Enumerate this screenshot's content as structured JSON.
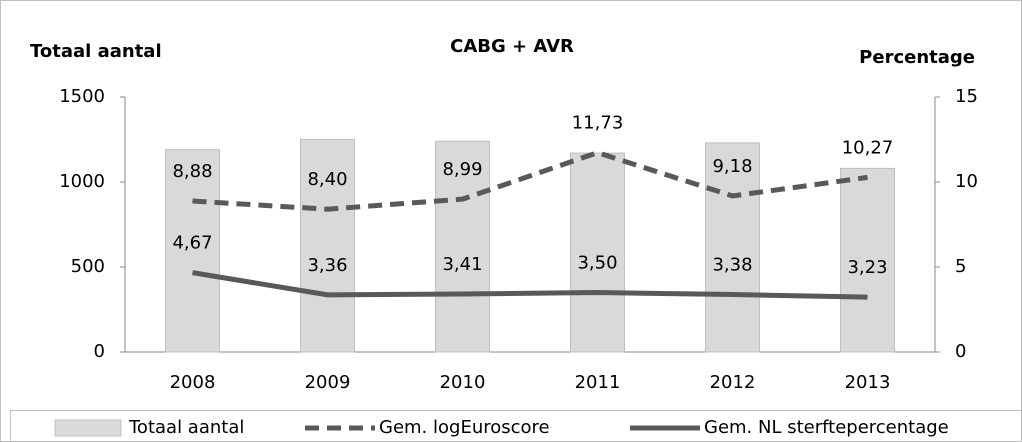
{
  "chart_data": {
    "type": "bar-line",
    "title": "CABG + AVR",
    "ylabel": "Totaal aantal",
    "y2label": "Percentage",
    "categories": [
      "2008",
      "2009",
      "2010",
      "2011",
      "2012",
      "2013"
    ],
    "series": [
      {
        "name": "Totaal aantal",
        "type": "bar",
        "color": "#d9d9d9",
        "axis": "y",
        "values": [
          1190,
          1250,
          1240,
          1170,
          1230,
          1080
        ]
      },
      {
        "name": "Gem. logEuroscore",
        "type": "line",
        "line_style": "dashed",
        "color": "#595959",
        "axis": "y2",
        "values": [
          8.88,
          8.4,
          8.99,
          11.73,
          9.18,
          10.27
        ],
        "value_labels": [
          "8,88",
          "8,40",
          "8,99",
          "11,73",
          "9,18",
          "10,27"
        ]
      },
      {
        "name": "Gem. NL sterftepercentage",
        "type": "line",
        "line_style": "solid",
        "color": "#595959",
        "axis": "y2",
        "values": [
          4.67,
          3.36,
          3.41,
          3.5,
          3.38,
          3.23
        ],
        "value_labels": [
          "4,67",
          "3,36",
          "3,41",
          "3,50",
          "3,38",
          "3,23"
        ]
      }
    ],
    "ylim": [
      0,
      1500
    ],
    "yticks": [
      0,
      500,
      1000,
      1500
    ],
    "y2lim": [
      0,
      15
    ],
    "y2ticks": [
      0,
      5,
      10,
      15
    ]
  }
}
